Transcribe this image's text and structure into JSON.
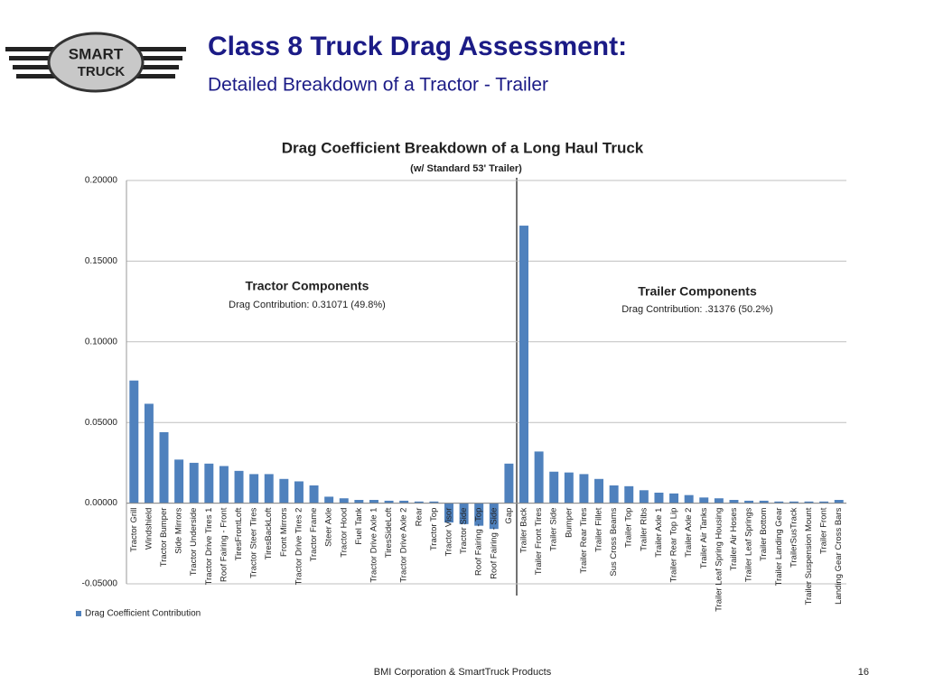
{
  "header": {
    "logo": [
      "SMART",
      "TRUCK"
    ],
    "title": "Class 8 Truck Drag Assessment:",
    "subtitle": "Detailed Breakdown of a Tractor - Trailer"
  },
  "footer": {
    "text": "BMI Corporation & SmartTruck Products",
    "page": "16"
  },
  "chart_data": {
    "type": "bar",
    "title": "Drag Coefficient Breakdown of a Long Haul Truck",
    "subtitle": "(w/ Standard 53' Trailer)",
    "annotations": [
      {
        "title": "Tractor Components",
        "text": "Drag  Contribution: 0.31071  (49.8%)"
      },
      {
        "title": "Trailer Components",
        "text": "Drag  Contribution: .31376  (50.2%)"
      }
    ],
    "categories": [
      "Tractor Grill",
      "Windshield",
      "Tractor Bumper",
      "Side Mirrors",
      "Tractor Underside",
      "Tractor Drive Tires 1",
      "Roof Fairing - Front",
      "TiresFrontLoft",
      "Tractor Steer Tires",
      "TiresBackLoft",
      "Front Mirrors",
      "Tractor Drive Tires 2",
      "Tractor Frame",
      "Steer Axle",
      "Tractor Hood",
      "Fuel Tank",
      "Tractor Drive Axle 1",
      "TiresSideLoft",
      "Tractor Drive Axle 2",
      "Rear",
      "Tractor Top",
      "Tractor Visor",
      "Tractor Side",
      "Roof Fairing - Top",
      "Roof Fairing - Side",
      "Gap",
      "Trailer Back",
      "Trailer Front Tires",
      "Trailer Side",
      "Bumper",
      "Trailer Rear Tires",
      "Trailer Fillet",
      "Sus Cross Beams",
      "Trailer Top",
      "Trailer Ribs",
      "Trailer Axle 1",
      "Trailer Rear Top Lip",
      "Trailer Axle 2",
      "Trailer Air Tanks",
      "Trailer Leaf Spring Housing",
      "Trailer Air Hoses",
      "Trailer Leaf Springs",
      "Trailer Bottom",
      "Trailer Landing Gear",
      "TrailerSusTrack",
      "Trailer Suspension Mount",
      "Trailer Front",
      "Landing Gear Cross Bars"
    ],
    "series": [
      {
        "name": "Drag Coefficient Contribution",
        "color": "#4f81bd",
        "values": [
          0.076,
          0.0616,
          0.044,
          0.027,
          0.025,
          0.0245,
          0.023,
          0.02,
          0.018,
          0.018,
          0.015,
          0.0135,
          0.011,
          0.004,
          0.003,
          0.002,
          0.002,
          0.0015,
          0.0015,
          0.001,
          0.001,
          -0.012,
          -0.013,
          -0.014,
          -0.016,
          0.0245,
          0.172,
          0.032,
          0.0195,
          0.019,
          0.018,
          0.015,
          0.011,
          0.0105,
          0.008,
          0.0065,
          0.006,
          0.005,
          0.0035,
          0.003,
          0.002,
          0.0015,
          0.0015,
          0.001,
          0.001,
          0.001,
          0.001,
          0.002
        ]
      }
    ],
    "ylim": [
      -0.05,
      0.2
    ],
    "yticks": [
      {
        "value": -0.05,
        "label": "-0.05000"
      },
      {
        "value": 0,
        "label": "0.00000"
      },
      {
        "value": 0.05,
        "label": "0.05000"
      },
      {
        "value": 0.1,
        "label": "0.10000"
      },
      {
        "value": 0.15,
        "label": "0.15000"
      },
      {
        "value": 0.2,
        "label": "0.20000"
      }
    ],
    "grid": true,
    "legend": "bottom-left"
  }
}
